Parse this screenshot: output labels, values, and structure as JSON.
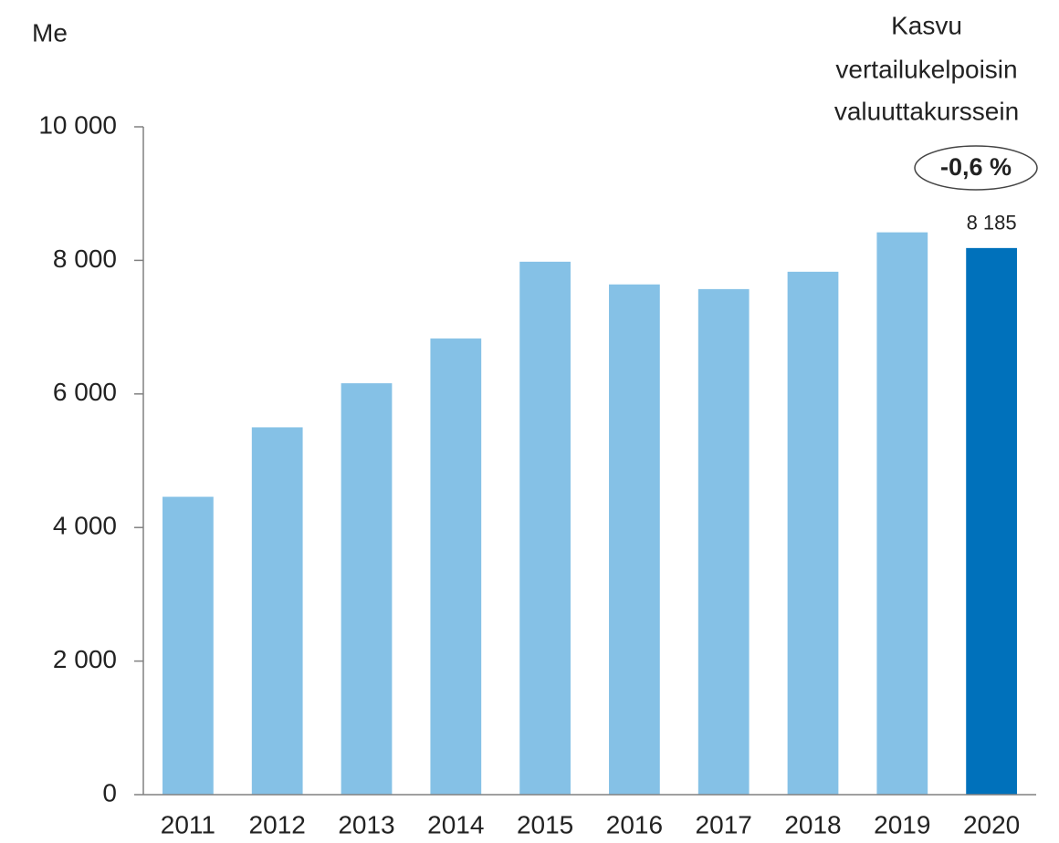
{
  "chart_data": {
    "type": "bar",
    "y_label": "Me",
    "annotation": [
      "Kasvu",
      "vertailukelpoisin",
      "valuuttakurssein"
    ],
    "growth": "-0,6 %",
    "categories": [
      "2011",
      "2012",
      "2013",
      "2014",
      "2015",
      "2016",
      "2017",
      "2018",
      "2019",
      "2020"
    ],
    "values": [
      4460,
      5500,
      6160,
      6830,
      7980,
      7640,
      7570,
      7830,
      8420,
      8185
    ],
    "value_labels": [
      null,
      null,
      null,
      null,
      null,
      null,
      null,
      null,
      null,
      "8 185"
    ],
    "colors": [
      "#85c1e6",
      "#85c1e6",
      "#85c1e6",
      "#85c1e6",
      "#85c1e6",
      "#85c1e6",
      "#85c1e6",
      "#85c1e6",
      "#85c1e6",
      "#0071bb"
    ],
    "ylim": [
      0,
      10000
    ],
    "yticks": [
      0,
      {
        "value": 2000,
        "label": "2 000"
      },
      {
        "value": 4000,
        "label": "4 000"
      },
      {
        "value": 6000,
        "label": "6 000"
      },
      {
        "value": 8000,
        "label": "8 000"
      },
      {
        "value": 10000,
        "label": "10 000"
      }
    ],
    "grid": false
  }
}
